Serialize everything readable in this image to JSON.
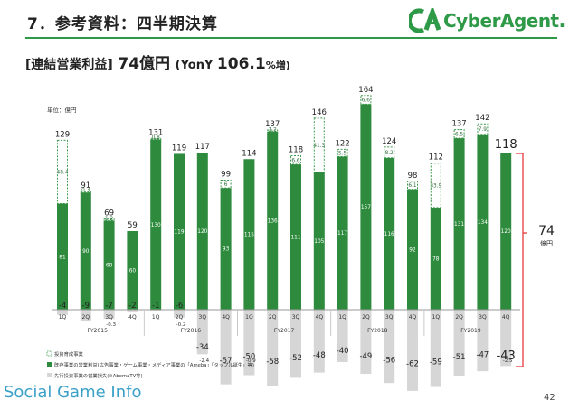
{
  "header": {
    "title": "7．参考資料：四半期決算",
    "logo_text": "CyberAgent."
  },
  "subtitle": {
    "bracket": "[連結営業利益]",
    "value": "74億円",
    "yony_open": "(YonY ",
    "yony_value": "106.1",
    "yony_pct": "%増)"
  },
  "footer": {
    "watermark": "Social Game Info",
    "page_number": "42"
  },
  "colors": {
    "existing": "#2e8b3e",
    "investment_fill": "#ffffff",
    "investment_border": "#3c9a4c",
    "prior_invest": "#d6d6d6",
    "bracket": "#e83a3a",
    "accent": "#2e9a47"
  },
  "chart_data": {
    "type": "bar",
    "unit_label": "単位：億円",
    "categories": [
      "1Q",
      "2Q",
      "3Q",
      "4Q",
      "1Q",
      "2Q",
      "3Q",
      "4Q",
      "1Q",
      "2Q",
      "3Q",
      "4Q",
      "1Q",
      "2Q",
      "3Q",
      "4Q",
      "1Q",
      "2Q",
      "3Q",
      "4Q"
    ],
    "fiscal_years": [
      "FY2015",
      "FY2016",
      "FY2017",
      "FY2018",
      "FY2019"
    ],
    "series": [
      {
        "name": "投資育成事業",
        "values": [
          48.4,
          0.3,
          1.2,
          0,
          0.8,
          0,
          0,
          6,
          0,
          1.2,
          6.6,
          41.3,
          5.5,
          6.6,
          8.2,
          6.1,
          33.9,
          6.5,
          7.9,
          0
        ]
      },
      {
        "name": "既存事業の営業利益(広告事業・ゲーム事業・メディア事業の「Ameba」「タップル誕生」等)",
        "values": [
          81,
          90,
          68,
          60,
          130,
          119,
          120,
          93,
          115,
          136,
          111,
          105,
          117,
          157,
          116,
          92,
          78,
          131,
          134,
          120
        ]
      },
      {
        "name": "先行投資事業の営業損失(※AbemaTV等)",
        "values": [
          -4,
          -9,
          -7,
          -2,
          -1,
          -6,
          -34,
          -57,
          -50,
          -58,
          -52,
          -48,
          -40,
          -49,
          -56,
          -62,
          -59,
          -51,
          -47,
          -43
        ]
      }
    ],
    "value_labels": {
      "investment": [
        "48.4",
        "0.3",
        "1.2",
        "",
        "0.8",
        "",
        "",
        "6",
        "",
        "1.2",
        "6.6",
        "41.3",
        "5.5",
        "6.6",
        "8.2",
        "6.1",
        "33.9",
        "6.5",
        "7.9",
        ""
      ],
      "existing": [
        "81",
        "90",
        "68",
        "60",
        "130",
        "119",
        "120",
        "93",
        "115",
        "136",
        "111",
        "105",
        "117",
        "157",
        "116",
        "92",
        "78",
        "131",
        "134",
        "120"
      ],
      "prior_small": [
        "",
        "",
        "-0.3",
        "",
        "",
        "-0.2",
        "-2.4",
        "",
        "-0.9",
        "",
        "",
        "",
        "",
        "",
        "",
        "",
        "",
        "",
        "",
        "-2.5"
      ]
    },
    "totals": [
      "129",
      "91",
      "69",
      "59",
      "131",
      "119",
      "117",
      "99",
      "114",
      "137",
      "118",
      "146",
      "122",
      "164",
      "124",
      "98",
      "112",
      "137",
      "142",
      "118"
    ],
    "ylim": [
      -70,
      175
    ],
    "annotation": {
      "value": "74",
      "unit": "億円"
    },
    "legend_placement": "bottom-left"
  }
}
